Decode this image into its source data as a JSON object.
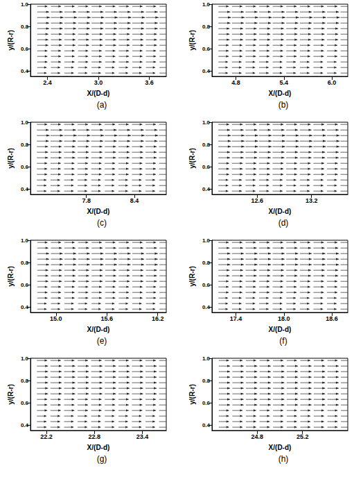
{
  "chart_data": [
    {
      "type": "vector",
      "caption": "(a)",
      "x_label": "X/(D-d)",
      "y_label": "y/(R-r)",
      "grid": false,
      "xlim": [
        2.2,
        3.8
      ],
      "xticks": [
        2.4,
        {
          "value": 3.0,
          "label": "3.0"
        },
        3.6
      ],
      "ylim": [
        0.35,
        1.0
      ],
      "yticks": [
        0.4,
        0.6,
        0.8,
        {
          "value": 1.0,
          "label": "1.0"
        }
      ],
      "vectors": {
        "x": [
          2.28,
          2.44,
          2.6,
          2.76,
          2.92,
          3.08,
          3.24,
          3.4,
          3.56,
          3.72
        ],
        "y": [
          0.38,
          0.43,
          0.48,
          0.53,
          0.58,
          0.63,
          0.68,
          0.73,
          0.78,
          0.83,
          0.88,
          0.93,
          0.98
        ],
        "u": [
          0.11,
          0.11,
          0.12,
          0.12,
          0.12,
          0.13,
          0.13,
          0.13,
          0.14,
          0.14,
          0.15,
          0.14,
          0.12
        ]
      }
    },
    {
      "type": "vector",
      "caption": "(b)",
      "x_label": "X/(D-d)",
      "y_label": "y/(R-r)",
      "grid": false,
      "xlim": [
        4.5,
        6.2
      ],
      "xticks": [
        4.8,
        5.4,
        {
          "value": 6.0,
          "label": "6.0"
        }
      ],
      "ylim": [
        0.35,
        1.0
      ],
      "yticks": [
        0.4,
        0.6,
        0.8,
        {
          "value": 1.0,
          "label": "1.0"
        }
      ],
      "vectors": {
        "x": [
          4.58,
          4.75,
          4.92,
          5.09,
          5.26,
          5.43,
          5.6,
          5.77,
          5.94,
          6.11
        ],
        "y": [
          0.38,
          0.43,
          0.48,
          0.53,
          0.58,
          0.63,
          0.68,
          0.73,
          0.78,
          0.83,
          0.88,
          0.93,
          0.98
        ],
        "u": [
          0.12,
          0.12,
          0.12,
          0.13,
          0.13,
          0.13,
          0.14,
          0.14,
          0.14,
          0.15,
          0.16,
          0.15,
          0.13
        ]
      }
    },
    {
      "type": "vector",
      "caption": "(c)",
      "x_label": "X/(D-d)",
      "y_label": "y/(R-r)",
      "grid": false,
      "xlim": [
        7.1,
        8.8
      ],
      "xticks": [
        7.8,
        8.4
      ],
      "ylim": [
        0.35,
        1.0
      ],
      "yticks": [
        0.4,
        0.6,
        0.8,
        {
          "value": 1.0,
          "label": "1.0"
        }
      ],
      "vectors": {
        "x": [
          7.18,
          7.35,
          7.52,
          7.69,
          7.86,
          8.03,
          8.2,
          8.37,
          8.54,
          8.71
        ],
        "y": [
          0.38,
          0.43,
          0.48,
          0.53,
          0.58,
          0.63,
          0.68,
          0.73,
          0.78,
          0.83,
          0.88,
          0.93,
          0.98
        ],
        "u": [
          0.12,
          0.12,
          0.12,
          0.13,
          0.13,
          0.13,
          0.14,
          0.14,
          0.14,
          0.15,
          0.16,
          0.15,
          0.13
        ]
      }
    },
    {
      "type": "vector",
      "caption": "(d)",
      "x_label": "X/(D-d)",
      "y_label": "y/(R-r)",
      "grid": false,
      "xlim": [
        12.1,
        13.6
      ],
      "xticks": [
        12.6,
        13.2
      ],
      "ylim": [
        0.35,
        1.0
      ],
      "yticks": [
        0.4,
        0.6,
        0.8,
        {
          "value": 1.0,
          "label": "1.0"
        }
      ],
      "vectors": {
        "x": [
          12.17,
          12.32,
          12.47,
          12.62,
          12.77,
          12.92,
          13.07,
          13.22,
          13.37,
          13.52
        ],
        "y": [
          0.38,
          0.43,
          0.48,
          0.53,
          0.58,
          0.63,
          0.68,
          0.73,
          0.78,
          0.83,
          0.88,
          0.93,
          0.98
        ],
        "u": [
          0.11,
          0.11,
          0.11,
          0.12,
          0.12,
          0.12,
          0.13,
          0.13,
          0.14,
          0.14,
          0.14,
          0.13,
          0.12
        ]
      }
    },
    {
      "type": "vector",
      "caption": "(e)",
      "x_label": "X/(D-d)",
      "y_label": "y/(R-r)",
      "grid": false,
      "xlim": [
        14.7,
        16.3
      ],
      "xticks": [
        {
          "value": 15.0,
          "label": "15.0"
        },
        15.6,
        16.2
      ],
      "ylim": [
        0.35,
        1.0
      ],
      "yticks": [
        0.4,
        0.6,
        0.8,
        {
          "value": 1.0,
          "label": "1.0"
        }
      ],
      "vectors": {
        "x": [
          14.78,
          14.94,
          15.1,
          15.26,
          15.42,
          15.58,
          15.74,
          15.9,
          16.06,
          16.22
        ],
        "y": [
          0.38,
          0.43,
          0.48,
          0.53,
          0.58,
          0.63,
          0.68,
          0.73,
          0.78,
          0.83,
          0.88,
          0.93,
          0.98
        ],
        "u": [
          0.11,
          0.11,
          0.12,
          0.12,
          0.12,
          0.13,
          0.13,
          0.13,
          0.14,
          0.14,
          0.14,
          0.13,
          0.12
        ]
      }
    },
    {
      "type": "vector",
      "caption": "(f)",
      "x_label": "X/(D-d)",
      "y_label": "y/(R-r)",
      "grid": false,
      "xlim": [
        17.1,
        18.8
      ],
      "xticks": [
        17.4,
        {
          "value": 18.0,
          "label": "18.0"
        },
        18.6
      ],
      "ylim": [
        0.35,
        1.0
      ],
      "yticks": [
        0.4,
        0.6,
        0.8,
        {
          "value": 1.0,
          "label": "1.0"
        }
      ],
      "vectors": {
        "x": [
          17.18,
          17.35,
          17.52,
          17.69,
          17.86,
          18.03,
          18.2,
          18.37,
          18.54,
          18.71
        ],
        "y": [
          0.38,
          0.43,
          0.48,
          0.53,
          0.58,
          0.63,
          0.68,
          0.73,
          0.78,
          0.83,
          0.88,
          0.93,
          0.98
        ],
        "u": [
          0.12,
          0.12,
          0.12,
          0.13,
          0.13,
          0.13,
          0.14,
          0.14,
          0.15,
          0.15,
          0.15,
          0.14,
          0.13
        ]
      }
    },
    {
      "type": "vector",
      "caption": "(g)",
      "x_label": "X/(D-d)",
      "y_label": "y/(R-r)",
      "grid": false,
      "xlim": [
        22.0,
        23.7
      ],
      "xticks": [
        22.2,
        22.8,
        23.4
      ],
      "ylim": [
        0.35,
        1.0
      ],
      "yticks": [
        0.4,
        0.6,
        0.8,
        {
          "value": 1.0,
          "label": "1.0"
        }
      ],
      "vectors": {
        "x": [
          22.08,
          22.25,
          22.42,
          22.59,
          22.76,
          22.93,
          23.1,
          23.27,
          23.44,
          23.61
        ],
        "y": [
          0.38,
          0.43,
          0.48,
          0.53,
          0.58,
          0.63,
          0.68,
          0.73,
          0.78,
          0.83,
          0.88,
          0.93,
          0.98
        ],
        "u": [
          0.12,
          0.12,
          0.12,
          0.13,
          0.13,
          0.13,
          0.14,
          0.14,
          0.14,
          0.14,
          0.14,
          0.14,
          0.13
        ]
      }
    },
    {
      "type": "vector",
      "caption": "(h)",
      "x_label": "X/(D-d)",
      "y_label": "y/(R-r)",
      "grid": false,
      "xlim": [
        24.4,
        25.6
      ],
      "xticks": [
        24.8,
        25.2
      ],
      "ylim": [
        0.35,
        1.0
      ],
      "yticks": [
        0.4,
        0.6,
        0.8,
        {
          "value": 1.0,
          "label": "1.0"
        }
      ],
      "vectors": {
        "x": [
          24.46,
          24.58,
          24.7,
          24.82,
          24.94,
          25.06,
          25.18,
          25.3,
          25.42,
          25.54
        ],
        "y": [
          0.38,
          0.43,
          0.48,
          0.53,
          0.58,
          0.63,
          0.68,
          0.73,
          0.78,
          0.83,
          0.88,
          0.93,
          0.98
        ],
        "u": [
          0.09,
          0.09,
          0.09,
          0.09,
          0.1,
          0.1,
          0.1,
          0.1,
          0.1,
          0.1,
          0.1,
          0.1,
          0.09
        ]
      }
    }
  ]
}
